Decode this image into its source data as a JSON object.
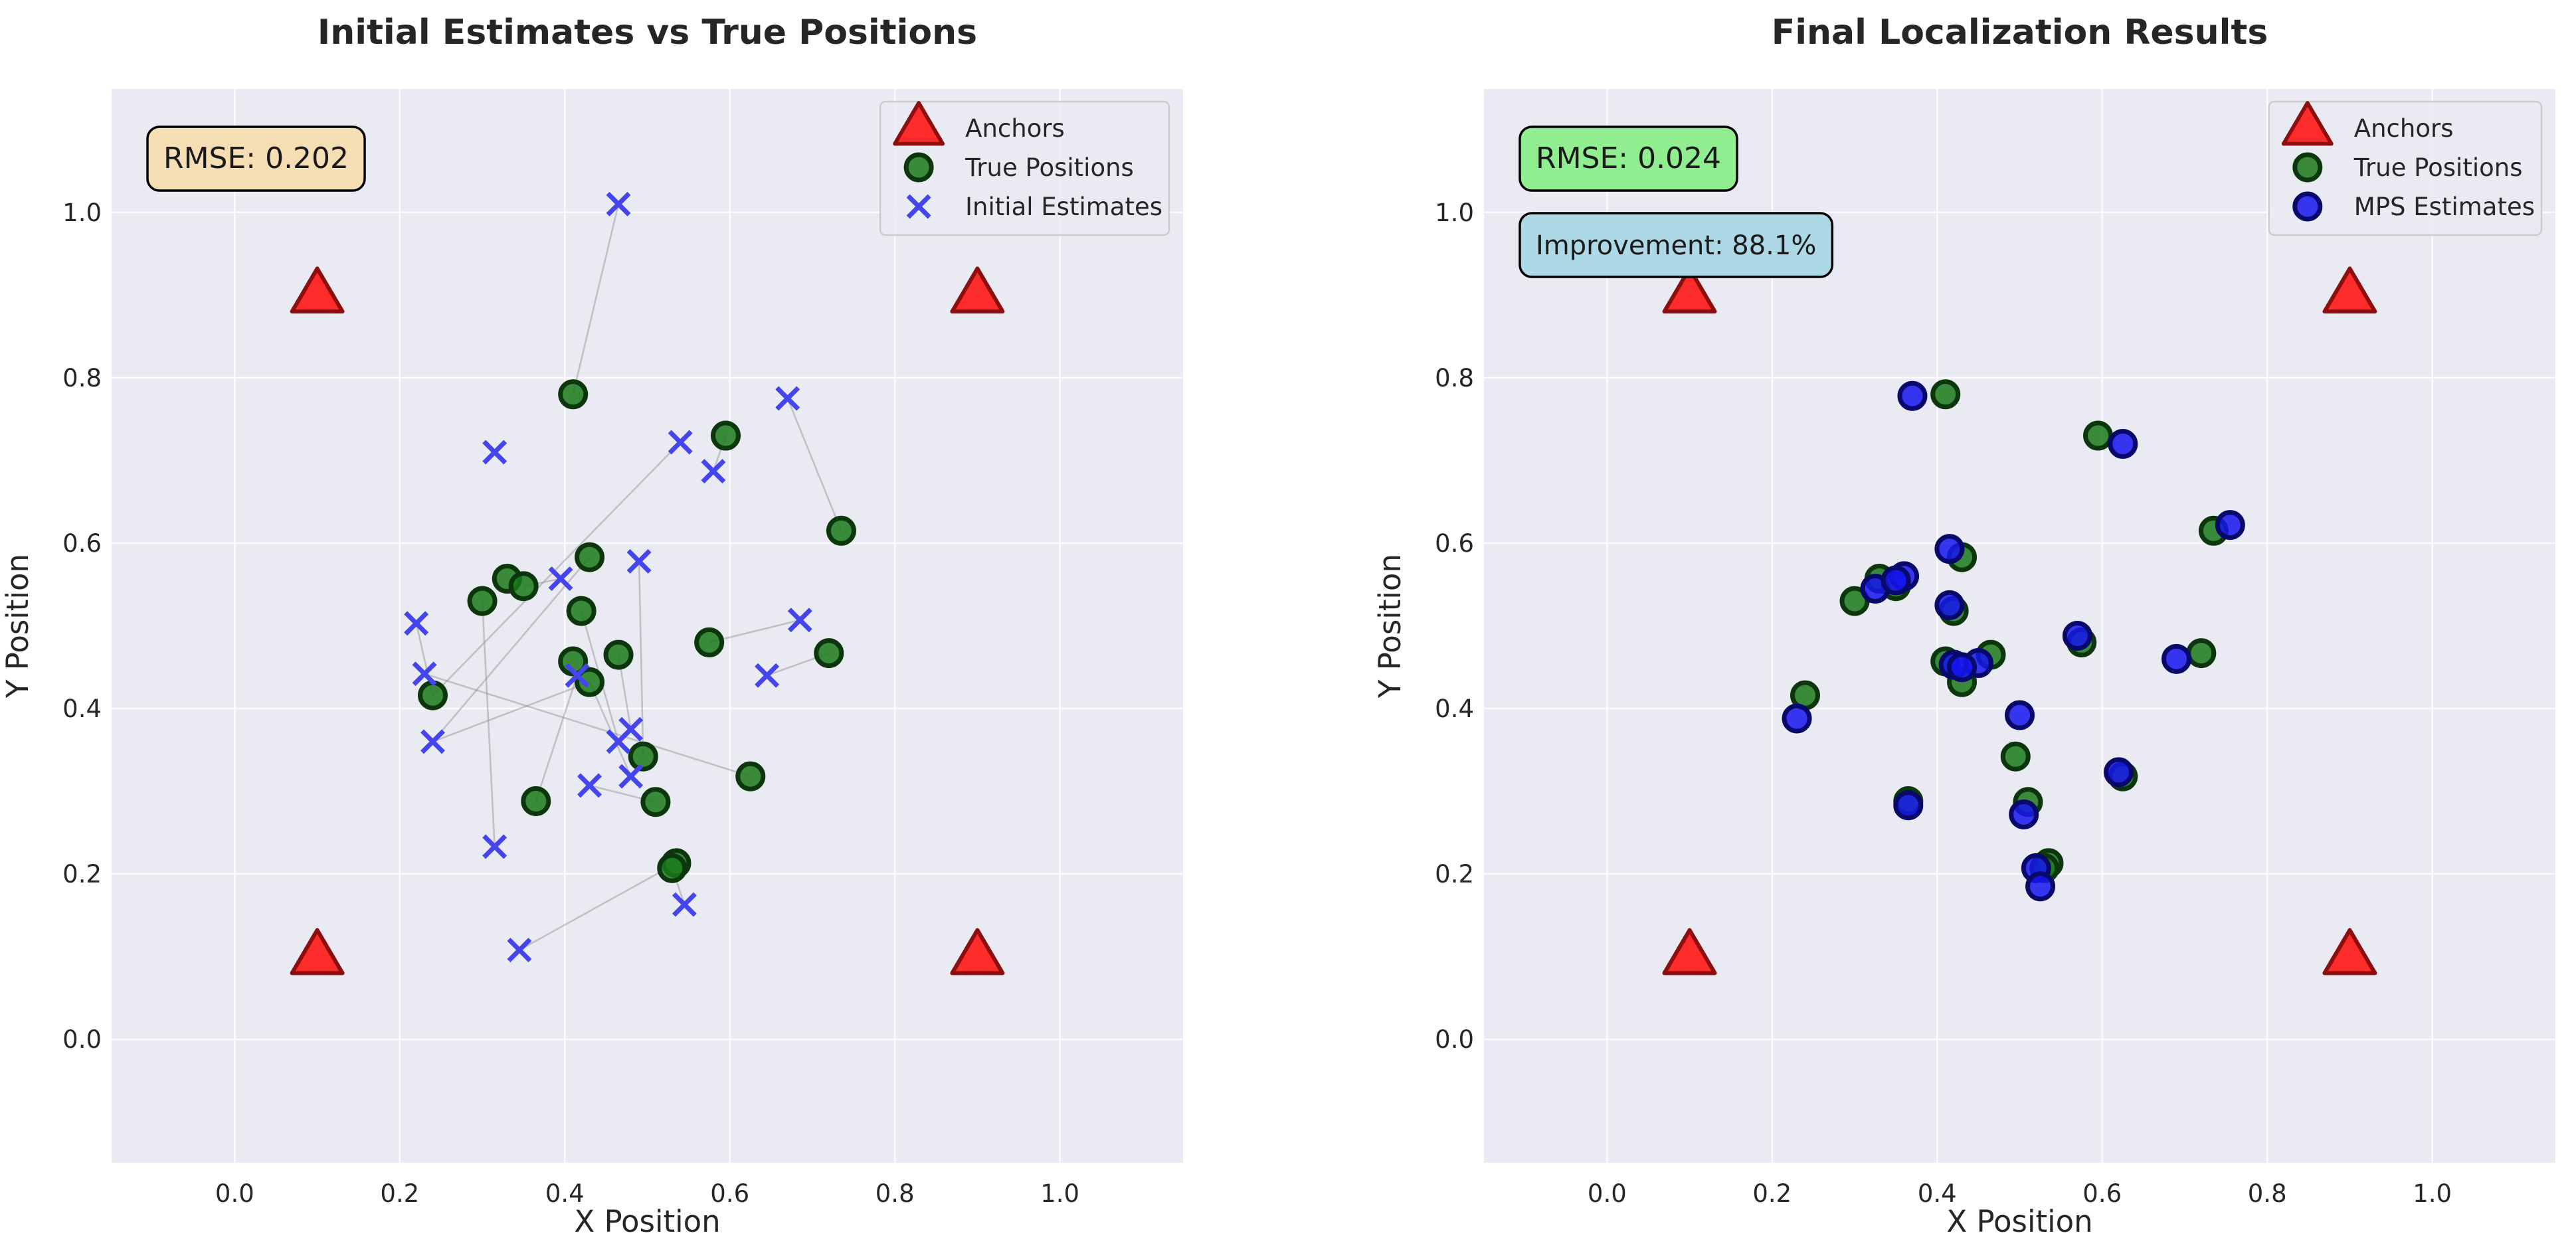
{
  "chart_data": [
    {
      "type": "scatter",
      "title": "Initial Estimates vs True Positions",
      "xlabel": "X Position",
      "ylabel": "Y Position",
      "xlim": [
        -0.15,
        1.15
      ],
      "ylim": [
        -0.15,
        1.15
      ],
      "xticks": [
        "0.0",
        "0.2",
        "0.4",
        "0.6",
        "0.8",
        "1.0"
      ],
      "yticks": [
        "0.0",
        "0.2",
        "0.4",
        "0.6",
        "0.8",
        "1.0"
      ],
      "grid": true,
      "legend_position": "top-right",
      "rmse_label": "RMSE: 0.202",
      "rmse_box_color": "#f5deb3",
      "connection_lines": true,
      "series": [
        {
          "name": "Anchors",
          "marker": "triangle",
          "color": "#ff1a1a",
          "points": [
            [
              0.1,
              0.9
            ],
            [
              0.9,
              0.9
            ],
            [
              0.1,
              0.1
            ],
            [
              0.9,
              0.1
            ]
          ]
        },
        {
          "name": "True Positions",
          "marker": "circle",
          "color": "#1a7a1a",
          "points": [
            [
              0.41,
              0.78
            ],
            [
              0.595,
              0.73
            ],
            [
              0.735,
              0.615
            ],
            [
              0.43,
              0.583
            ],
            [
              0.33,
              0.557
            ],
            [
              0.35,
              0.548
            ],
            [
              0.3,
              0.53
            ],
            [
              0.42,
              0.518
            ],
            [
              0.575,
              0.48
            ],
            [
              0.72,
              0.467
            ],
            [
              0.465,
              0.465
            ],
            [
              0.41,
              0.457
            ],
            [
              0.43,
              0.432
            ],
            [
              0.24,
              0.416
            ],
            [
              0.495,
              0.342
            ],
            [
              0.625,
              0.318
            ],
            [
              0.365,
              0.288
            ],
            [
              0.51,
              0.287
            ],
            [
              0.535,
              0.213
            ],
            [
              0.53,
              0.207
            ]
          ]
        },
        {
          "name": "Initial Estimates",
          "marker": "x",
          "color": "#4545ee",
          "points": [
            [
              0.465,
              1.01
            ],
            [
              0.67,
              0.775
            ],
            [
              0.315,
              0.71
            ],
            [
              0.54,
              0.722
            ],
            [
              0.58,
              0.687
            ],
            [
              0.49,
              0.578
            ],
            [
              0.395,
              0.557
            ],
            [
              0.22,
              0.503
            ],
            [
              0.685,
              0.507
            ],
            [
              0.23,
              0.442
            ],
            [
              0.645,
              0.44
            ],
            [
              0.415,
              0.44
            ],
            [
              0.48,
              0.375
            ],
            [
              0.24,
              0.36
            ],
            [
              0.465,
              0.36
            ],
            [
              0.48,
              0.318
            ],
            [
              0.43,
              0.307
            ],
            [
              0.315,
              0.233
            ],
            [
              0.545,
              0.163
            ],
            [
              0.345,
              0.108
            ]
          ]
        }
      ],
      "links": [
        [
          [
            0.41,
            0.78
          ],
          [
            0.465,
            1.01
          ]
        ],
        [
          [
            0.735,
            0.615
          ],
          [
            0.67,
            0.775
          ]
        ],
        [
          [
            0.3,
            0.53
          ],
          [
            0.315,
            0.233
          ]
        ],
        [
          [
            0.43,
            0.583
          ],
          [
            0.24,
            0.36
          ]
        ],
        [
          [
            0.595,
            0.73
          ],
          [
            0.58,
            0.687
          ]
        ],
        [
          [
            0.24,
            0.416
          ],
          [
            0.22,
            0.503
          ]
        ],
        [
          [
            0.24,
            0.416
          ],
          [
            0.54,
            0.722
          ]
        ],
        [
          [
            0.465,
            0.465
          ],
          [
            0.48,
            0.375
          ]
        ],
        [
          [
            0.495,
            0.342
          ],
          [
            0.49,
            0.578
          ]
        ],
        [
          [
            0.42,
            0.518
          ],
          [
            0.465,
            0.36
          ]
        ],
        [
          [
            0.625,
            0.318
          ],
          [
            0.23,
            0.442
          ]
        ],
        [
          [
            0.72,
            0.467
          ],
          [
            0.645,
            0.44
          ]
        ],
        [
          [
            0.575,
            0.48
          ],
          [
            0.685,
            0.507
          ]
        ],
        [
          [
            0.35,
            0.548
          ],
          [
            0.395,
            0.557
          ]
        ],
        [
          [
            0.365,
            0.288
          ],
          [
            0.415,
            0.44
          ]
        ],
        [
          [
            0.43,
            0.432
          ],
          [
            0.48,
            0.318
          ]
        ],
        [
          [
            0.43,
            0.432
          ],
          [
            0.24,
            0.36
          ]
        ],
        [
          [
            0.51,
            0.287
          ],
          [
            0.43,
            0.307
          ]
        ],
        [
          [
            0.535,
            0.213
          ],
          [
            0.345,
            0.108
          ]
        ],
        [
          [
            0.53,
            0.207
          ],
          [
            0.545,
            0.163
          ]
        ]
      ]
    },
    {
      "type": "scatter",
      "title": "Final Localization Results",
      "xlabel": "X Position",
      "ylabel": "Y Position",
      "xlim": [
        -0.15,
        1.15
      ],
      "ylim": [
        -0.15,
        1.15
      ],
      "xticks": [
        "0.0",
        "0.2",
        "0.4",
        "0.6",
        "0.8",
        "1.0"
      ],
      "yticks": [
        "0.0",
        "0.2",
        "0.4",
        "0.6",
        "0.8",
        "1.0"
      ],
      "grid": true,
      "legend_position": "top-right",
      "rmse_label": "RMSE: 0.024",
      "rmse_box_color": "#90ee90",
      "improvement_label": "Improvement: 88.1%",
      "improvement_box_color": "#add8e6",
      "connection_lines": false,
      "series": [
        {
          "name": "Anchors",
          "marker": "triangle",
          "color": "#ff1a1a",
          "points": [
            [
              0.1,
              0.9
            ],
            [
              0.9,
              0.9
            ],
            [
              0.1,
              0.1
            ],
            [
              0.9,
              0.1
            ]
          ]
        },
        {
          "name": "True Positions",
          "marker": "circle",
          "color": "#1a7a1a",
          "points": [
            [
              0.41,
              0.78
            ],
            [
              0.595,
              0.73
            ],
            [
              0.735,
              0.615
            ],
            [
              0.43,
              0.583
            ],
            [
              0.33,
              0.557
            ],
            [
              0.35,
              0.548
            ],
            [
              0.3,
              0.53
            ],
            [
              0.42,
              0.518
            ],
            [
              0.575,
              0.48
            ],
            [
              0.72,
              0.467
            ],
            [
              0.465,
              0.465
            ],
            [
              0.41,
              0.457
            ],
            [
              0.43,
              0.432
            ],
            [
              0.24,
              0.416
            ],
            [
              0.495,
              0.342
            ],
            [
              0.625,
              0.318
            ],
            [
              0.365,
              0.288
            ],
            [
              0.51,
              0.287
            ],
            [
              0.535,
              0.213
            ],
            [
              0.53,
              0.207
            ]
          ]
        },
        {
          "name": "MPS Estimates",
          "marker": "circle",
          "color": "#1515ee",
          "points": [
            [
              0.37,
              0.778
            ],
            [
              0.625,
              0.72
            ],
            [
              0.755,
              0.622
            ],
            [
              0.415,
              0.593
            ],
            [
              0.325,
              0.545
            ],
            [
              0.36,
              0.56
            ],
            [
              0.35,
              0.555
            ],
            [
              0.415,
              0.525
            ],
            [
              0.57,
              0.488
            ],
            [
              0.69,
              0.46
            ],
            [
              0.45,
              0.455
            ],
            [
              0.42,
              0.453
            ],
            [
              0.43,
              0.45
            ],
            [
              0.23,
              0.388
            ],
            [
              0.5,
              0.392
            ],
            [
              0.62,
              0.323
            ],
            [
              0.365,
              0.283
            ],
            [
              0.505,
              0.272
            ],
            [
              0.52,
              0.207
            ],
            [
              0.525,
              0.185
            ]
          ]
        }
      ]
    }
  ]
}
